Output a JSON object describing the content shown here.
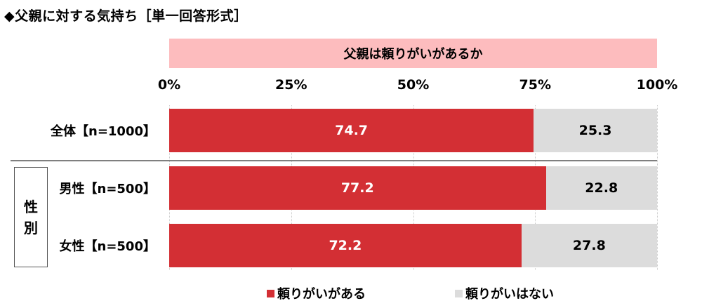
{
  "title": "◆父親に対する気持ち［単一回答形式］",
  "question": "父親は頼りがいがあるか",
  "group_label_chars": [
    "性",
    "別"
  ],
  "colors": {
    "yes": "#d32f34",
    "no": "#dcdcdc",
    "question_bg": "#fdbcbe"
  },
  "chart_data": {
    "type": "bar",
    "orientation": "horizontal",
    "stacked": true,
    "x_ticks": [
      "0%",
      "25%",
      "50%",
      "75%",
      "100%"
    ],
    "xlim": [
      0,
      100
    ],
    "categories": [
      "全体【n=1000】",
      "男性【n=500】",
      "女性【n=500】"
    ],
    "series": [
      {
        "name": "頼りがいがある",
        "values": [
          74.7,
          77.2,
          72.2
        ]
      },
      {
        "name": "頼りがいはない",
        "values": [
          25.3,
          22.8,
          27.8
        ]
      }
    ],
    "value_labels": [
      [
        "74.7",
        "77.2",
        "72.2"
      ],
      [
        "25.3",
        "22.8",
        "27.8"
      ]
    ],
    "legend_position": "bottom",
    "grid": true
  }
}
